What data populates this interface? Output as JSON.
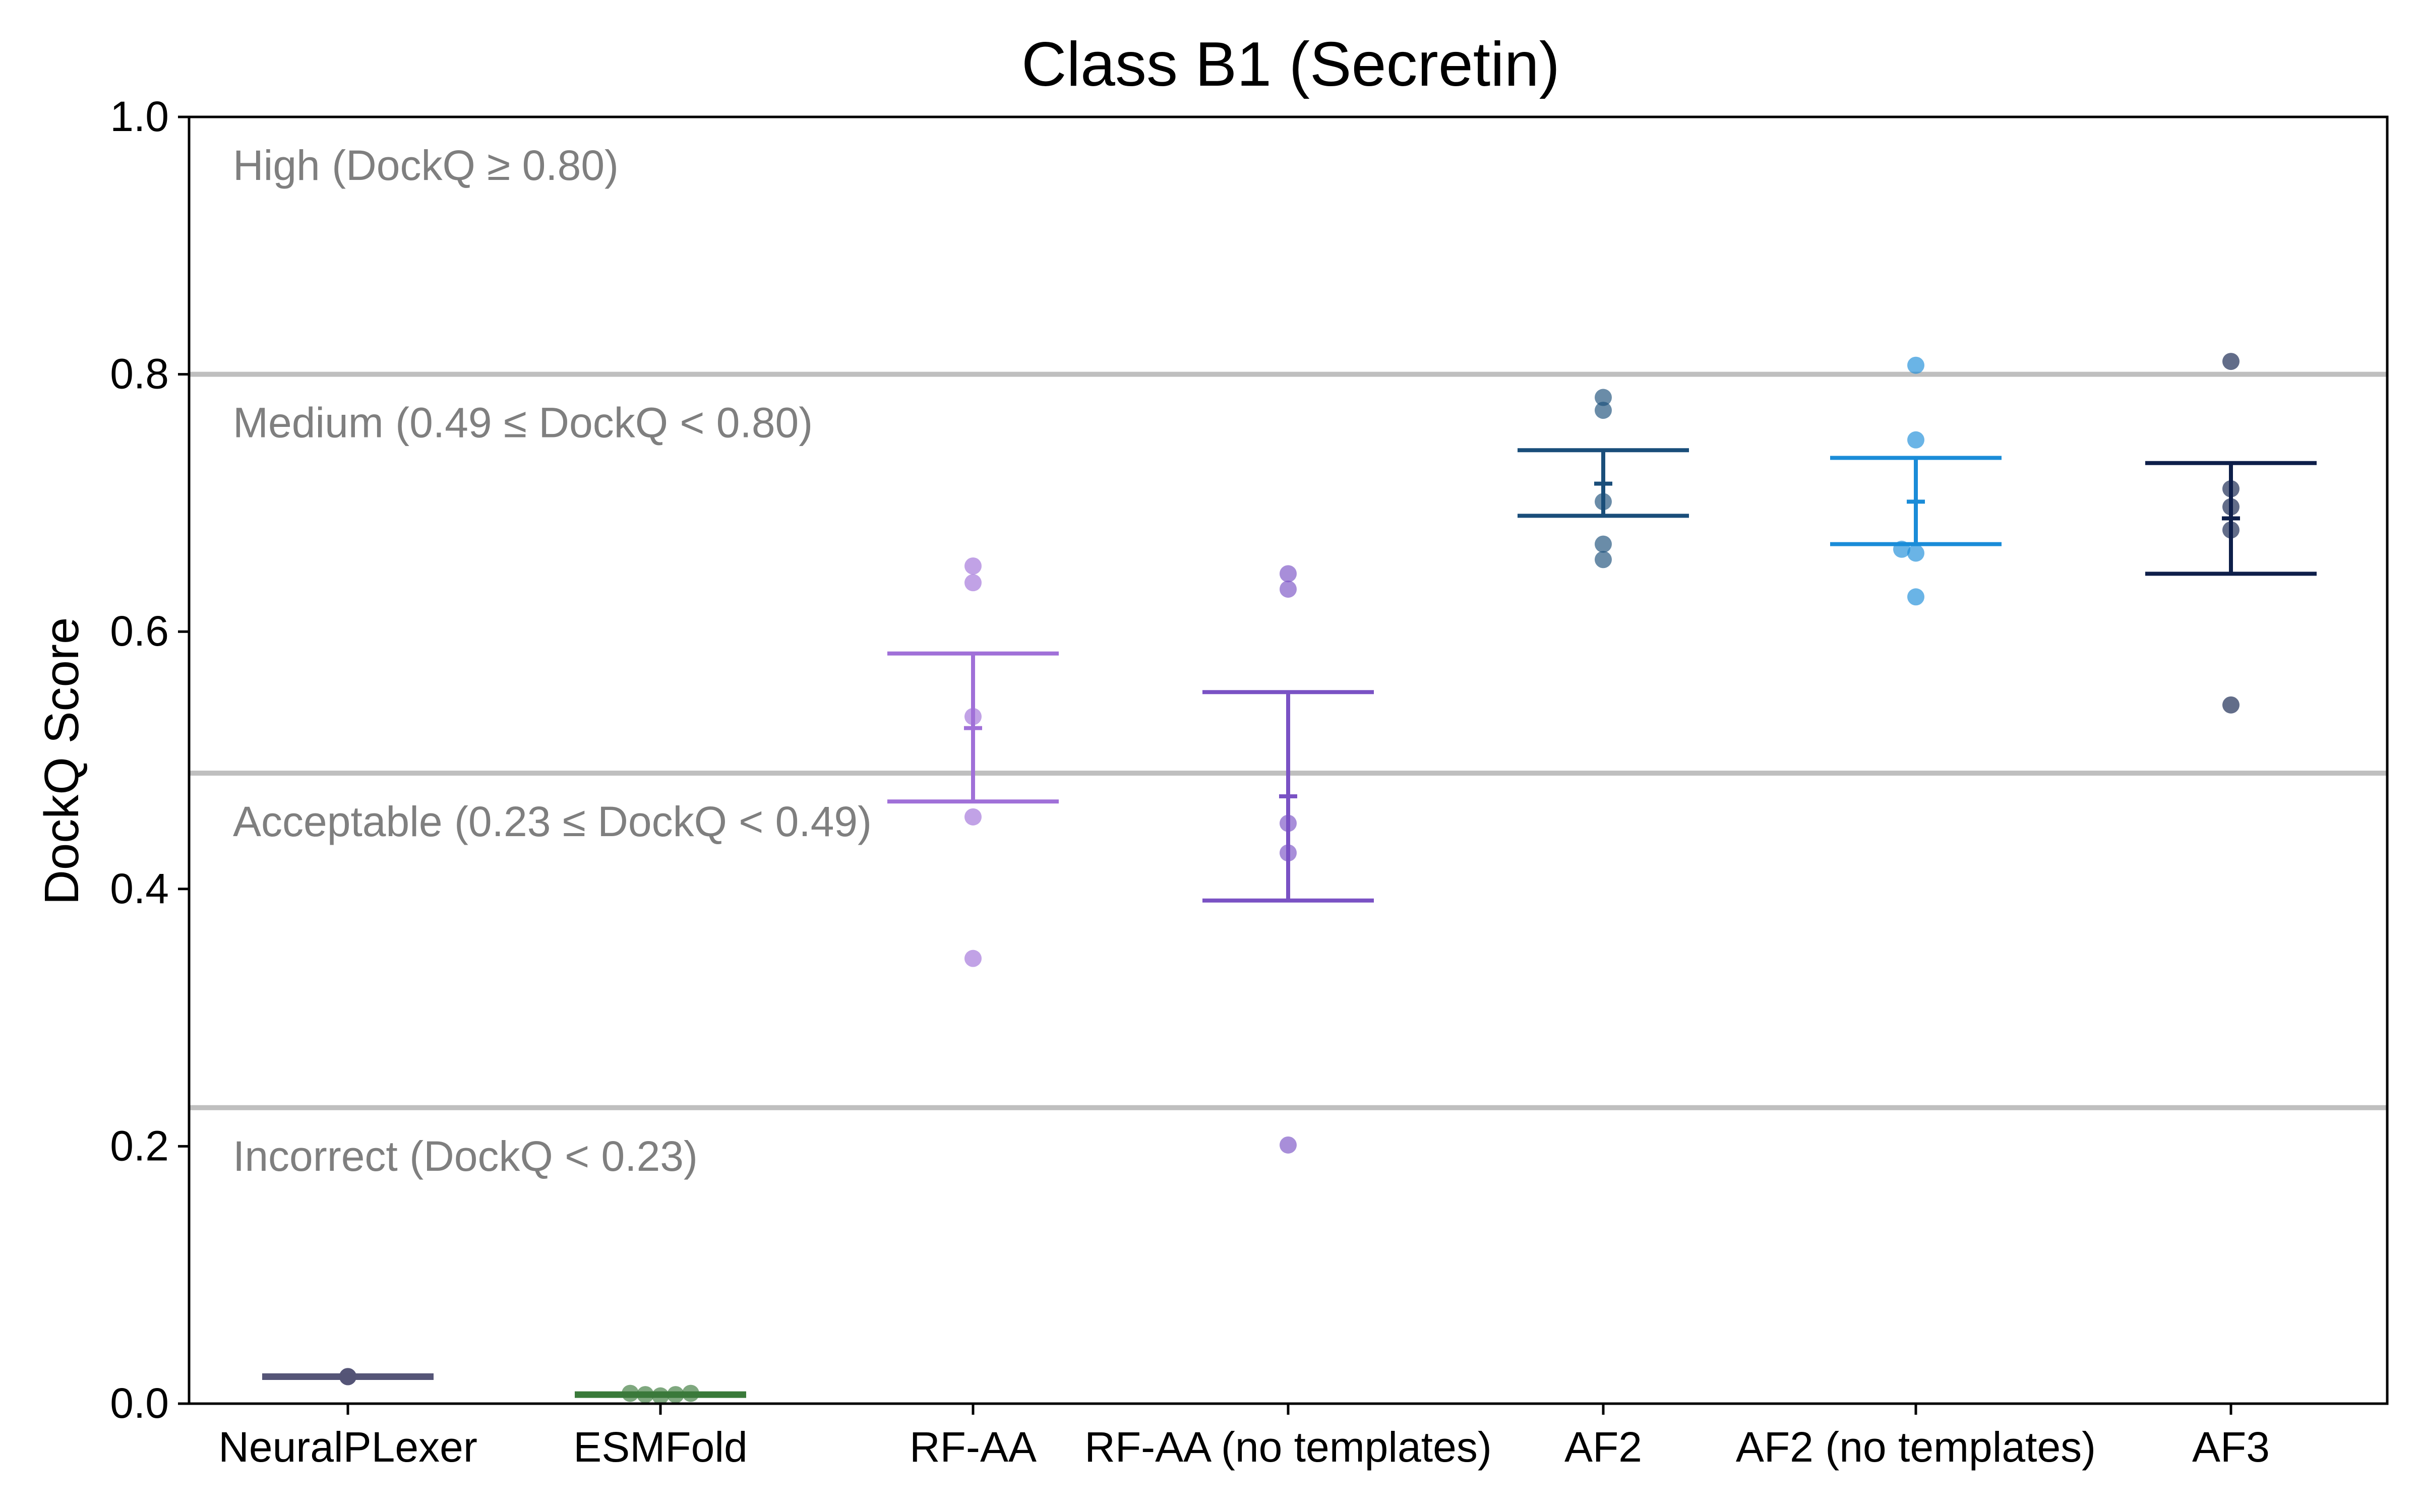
{
  "chart_data": {
    "type": "scatter",
    "title": "Class B1 (Secretin)",
    "xlabel": "",
    "ylabel": "DockQ Score",
    "ylim": [
      0,
      1.0
    ],
    "yticks": [
      "0.0",
      "0.2",
      "0.4",
      "0.6",
      "0.8",
      "1.0"
    ],
    "grid": false,
    "categories": [
      "NeuralPLexer",
      "ESMFold",
      "RF-AA",
      "RF-AA (no templates)",
      "AF2",
      "AF2 (no templates)",
      "AF3"
    ],
    "thresholds": [
      {
        "value": 0.8,
        "label": "High (DockQ ≥ 0.80)"
      },
      {
        "value": 0.49,
        "label": "Medium (0.49 ≤ DockQ < 0.80)"
      },
      {
        "value": 0.23,
        "label": "Acceptable (0.23 ≤ DockQ < 0.49)"
      },
      {
        "value": 0.0,
        "label": "Incorrect (DockQ < 0.23)"
      }
    ],
    "series": [
      {
        "category": "NeuralPLexer",
        "color": "#555577",
        "points": [
          0.021,
          0.021,
          0.021,
          0.021,
          0.021
        ],
        "mean": 0.021,
        "ci": [
          0.02,
          0.022
        ]
      },
      {
        "category": "ESMFold",
        "color": "#3a7a3a",
        "points": [
          0.008,
          0.007,
          0.006,
          0.007,
          0.008
        ],
        "mean": 0.007,
        "ci": [
          0.006,
          0.008
        ]
      },
      {
        "category": "RF-AA",
        "color": "#a070d8",
        "points": [
          0.651,
          0.638,
          0.534,
          0.456,
          0.346
        ],
        "mean": 0.525,
        "ci": [
          0.468,
          0.583
        ]
      },
      {
        "category": "RF-AA (no templates)",
        "color": "#7a52c4",
        "points": [
          0.645,
          0.633,
          0.451,
          0.428,
          0.201
        ],
        "mean": 0.472,
        "ci": [
          0.391,
          0.553
        ]
      },
      {
        "category": "AF2",
        "color": "#1a4e7a",
        "points": [
          0.782,
          0.772,
          0.701,
          0.668,
          0.656
        ],
        "mean": 0.715,
        "ci": [
          0.69,
          0.741
        ]
      },
      {
        "category": "AF2 (no templates)",
        "color": "#1a8cd8",
        "points": [
          0.807,
          0.749,
          0.664,
          0.661,
          0.627
        ],
        "mean": 0.701,
        "ci": [
          0.668,
          0.735
        ]
      },
      {
        "category": "AF3",
        "color": "#0e1f4a",
        "points": [
          0.81,
          0.711,
          0.697,
          0.679,
          0.543
        ],
        "mean": 0.688,
        "ci": [
          0.645,
          0.731
        ]
      }
    ]
  }
}
